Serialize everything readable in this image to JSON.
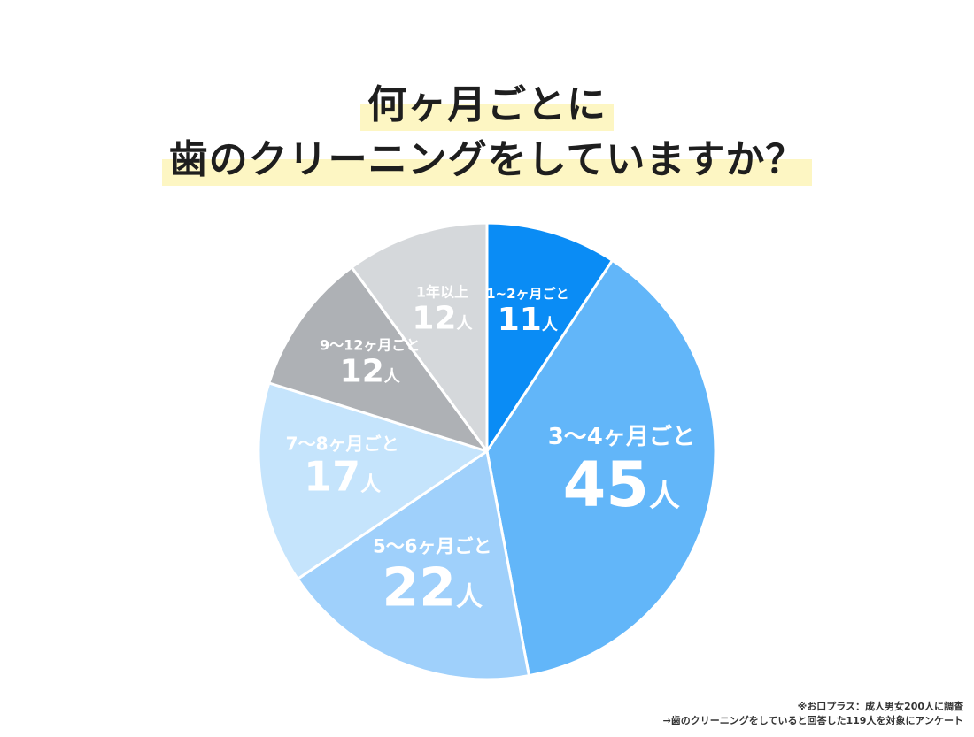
{
  "title": {
    "line1": "何ヶ月ごとに",
    "line2": "歯のクリーニングをしていますか？",
    "highlight_color": "#fdf6c3"
  },
  "chart_data": {
    "type": "pie",
    "title": "何ヶ月ごとに 歯のクリーニングをしていますか？",
    "total": 119,
    "unit": "人",
    "start": "12 o'clock, clockwise",
    "slices": [
      {
        "label": "1~2ヶ月ごと",
        "value": 11,
        "value_text": "11",
        "color": "#0a8cf5"
      },
      {
        "label": "3〜4ヶ月ごと",
        "value": 45,
        "value_text": "45",
        "color": "#62b6f9"
      },
      {
        "label": "5〜6ヶ月ごと",
        "value": 22,
        "value_text": "22",
        "color": "#9fd0fb"
      },
      {
        "label": "7〜8ヶ月ごと",
        "value": 17,
        "value_text": "17",
        "color": "#c5e4fc"
      },
      {
        "label": "9〜12ヶ月ごと",
        "value": 12,
        "value_text": "12",
        "color": "#aeb1b5"
      },
      {
        "label": "1年以上",
        "value": 12,
        "value_text": "12",
        "color": "#d5d8db"
      }
    ]
  },
  "footnote": {
    "line1": "※お口プラス：成人男女200人に調査",
    "line2": "→歯のクリーニングをしていると回答した119人を対象にアンケート"
  }
}
